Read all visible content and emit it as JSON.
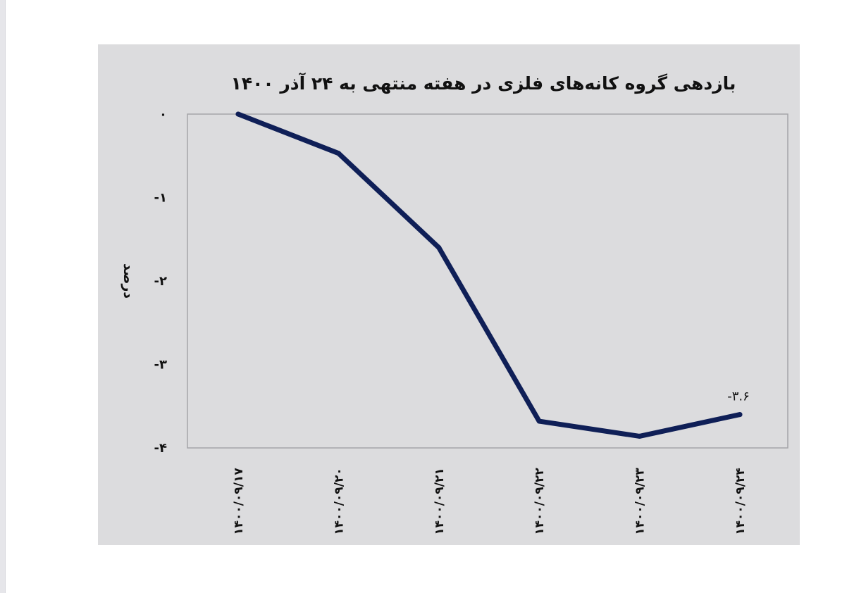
{
  "chart_data": {
    "type": "line",
    "title": "بازدهی گروه کانه‌های فلزی در هفته منتهی به ۲۴ آذر ۱۴۰۰",
    "ylabel": "درصد",
    "xlabel": "",
    "categories": [
      "۱۴۰۰/۰۹/۱۷",
      "۱۴۰۰/۰۹/۲۰",
      "۱۴۰۰/۰۹/۲۱",
      "۱۴۰۰/۰۹/۲۲",
      "۱۴۰۰/۰۹/۲۳",
      "۱۴۰۰/۰۹/۲۴"
    ],
    "series": [
      {
        "values": [
          0,
          -0.47,
          -1.6,
          -3.68,
          -3.86,
          -3.6
        ],
        "color": "#0f1f57"
      }
    ],
    "yticks": [
      0,
      -1,
      -2,
      -3,
      -4
    ],
    "ytick_labels": [
      "۰",
      "-۱",
      "-۲",
      "-۳",
      "-۴"
    ],
    "ylim": [
      -4,
      0
    ],
    "data_labels": [
      {
        "index": 5,
        "text": "-۳.۶"
      }
    ],
    "grid": false,
    "legend": "none"
  }
}
